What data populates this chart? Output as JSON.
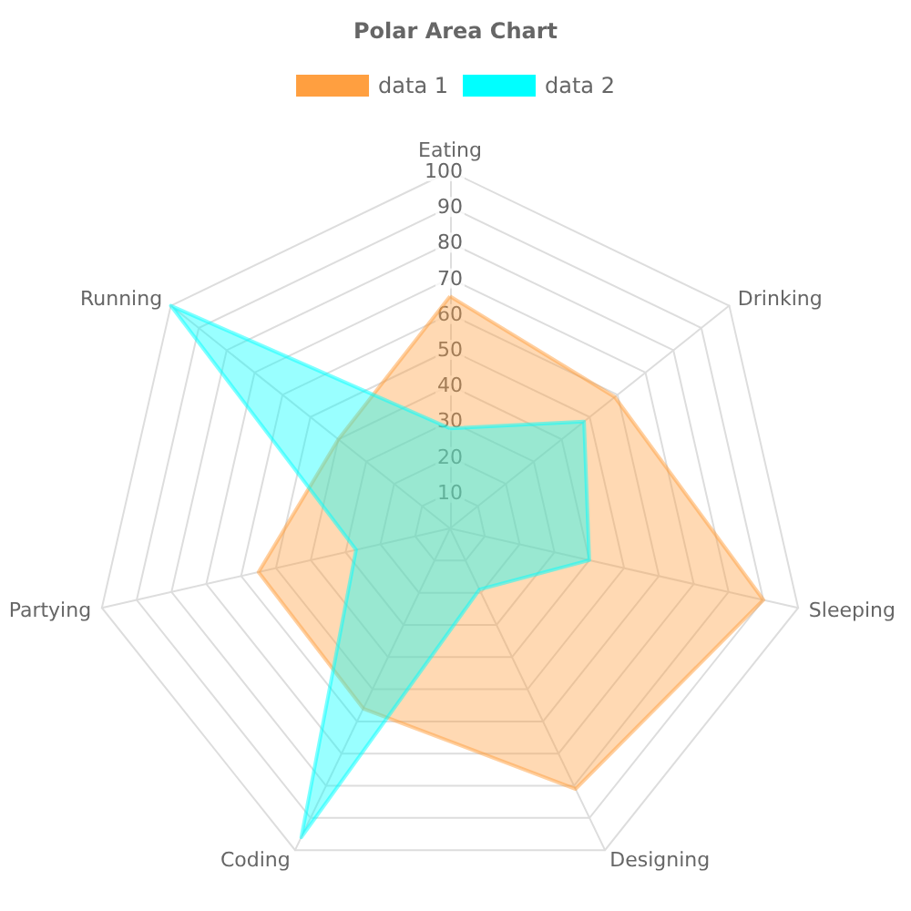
{
  "chart_data": {
    "type": "radar",
    "title": "Polar Area Chart",
    "categories": [
      "Eating",
      "Drinking",
      "Sleeping",
      "Designing",
      "Coding",
      "Partying",
      "Running"
    ],
    "series": [
      {
        "name": "data 1",
        "color": "#ff9f40",
        "values": [
          65,
          59,
          90,
          81,
          56,
          55,
          40
        ]
      },
      {
        "name": "data 2",
        "color": "#00ffff",
        "values": [
          28,
          48,
          40,
          19,
          96,
          27,
          100
        ]
      }
    ],
    "ylim": [
      0,
      100
    ],
    "yticks": [
      10,
      20,
      30,
      40,
      50,
      60,
      70,
      80,
      90,
      100
    ],
    "grid": true,
    "legend": "top"
  }
}
